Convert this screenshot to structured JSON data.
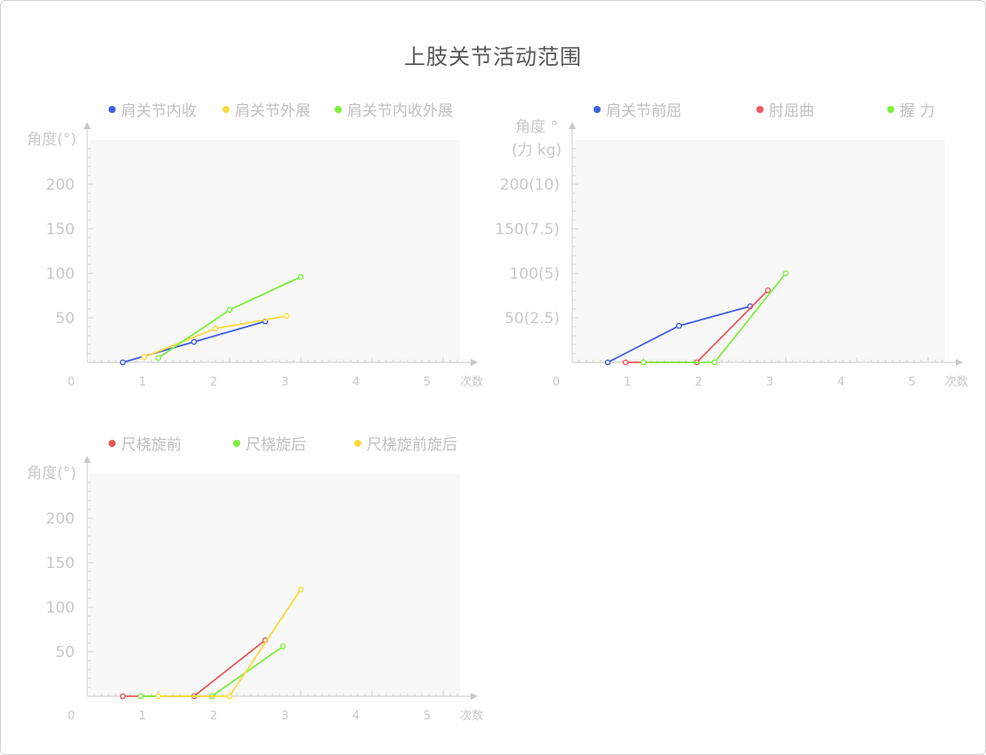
{
  "title": "上肢关节活动范围",
  "chart_data": [
    {
      "type": "line",
      "xlabel": "次数",
      "ylabel": [
        "角度(°)"
      ],
      "x_ticks": [
        0,
        1,
        2,
        3,
        4,
        5
      ],
      "y_ticks": [
        {
          "value": 50,
          "label": "50"
        },
        {
          "value": 100,
          "label": "100"
        },
        {
          "value": 150,
          "label": "150"
        },
        {
          "value": 200,
          "label": "200"
        }
      ],
      "xlim": [
        0,
        5.6
      ],
      "ylim": [
        0,
        250
      ],
      "series": [
        {
          "name": "肩关节内收",
          "color": "#3f5fe0",
          "points": [
            [
              0.5,
              0
            ],
            [
              1.5,
              23
            ],
            [
              2.5,
              46
            ]
          ]
        },
        {
          "name": "肩关节外展",
          "color": "#ffd83a",
          "points": [
            [
              0.8,
              6
            ],
            [
              1.8,
              38
            ],
            [
              2.8,
              52
            ]
          ]
        },
        {
          "name": "肩关节内收外展",
          "color": "#7cf03c",
          "points": [
            [
              1.0,
              5
            ],
            [
              2.0,
              59
            ],
            [
              3.0,
              96
            ]
          ]
        }
      ]
    },
    {
      "type": "line",
      "xlabel": "次数",
      "ylabel": [
        "角度 °",
        "(力 kg)"
      ],
      "x_ticks": [
        0,
        1,
        2,
        3,
        4,
        5
      ],
      "y_ticks": [
        {
          "value": 50,
          "label": "50(2.5)"
        },
        {
          "value": 100,
          "label": "100(5)"
        },
        {
          "value": 150,
          "label": "150(7.5)"
        },
        {
          "value": 200,
          "label": "200(10)"
        }
      ],
      "xlim": [
        0,
        5.6
      ],
      "ylim": [
        0,
        250
      ],
      "series": [
        {
          "name": "肩关节前屈",
          "color": "#3f5fe0",
          "points": [
            [
              0.5,
              0
            ],
            [
              1.5,
              41
            ],
            [
              2.5,
              63
            ]
          ]
        },
        {
          "name": "肘屈曲",
          "color": "#e85a5a",
          "points": [
            [
              0.75,
              0
            ],
            [
              1.75,
              0
            ],
            [
              2.75,
              81
            ]
          ]
        },
        {
          "name": "握 力",
          "color": "#7cf03c",
          "points": [
            [
              1.0,
              0
            ],
            [
              2.0,
              0
            ],
            [
              3.0,
              100
            ]
          ]
        }
      ]
    },
    {
      "type": "line",
      "xlabel": "次数",
      "ylabel": [
        "角度(°)"
      ],
      "x_ticks": [
        0,
        1,
        2,
        3,
        4,
        5
      ],
      "y_ticks": [
        {
          "value": 50,
          "label": "50"
        },
        {
          "value": 100,
          "label": "100"
        },
        {
          "value": 150,
          "label": "150"
        },
        {
          "value": 200,
          "label": "200"
        }
      ],
      "xlim": [
        0,
        5.6
      ],
      "ylim": [
        0,
        250
      ],
      "series": [
        {
          "name": "尺桡旋前",
          "color": "#e85a5a",
          "points": [
            [
              0.5,
              0
            ],
            [
              1.5,
              0
            ],
            [
              2.5,
              63
            ]
          ]
        },
        {
          "name": "尺桡旋后",
          "color": "#7cf03c",
          "points": [
            [
              0.75,
              0
            ],
            [
              1.75,
              0
            ],
            [
              2.75,
              56
            ]
          ]
        },
        {
          "name": "尺桡旋前旋后",
          "color": "#ffd83a",
          "points": [
            [
              1.0,
              0
            ],
            [
              2.0,
              0
            ],
            [
              3.0,
              120
            ]
          ]
        }
      ]
    }
  ]
}
